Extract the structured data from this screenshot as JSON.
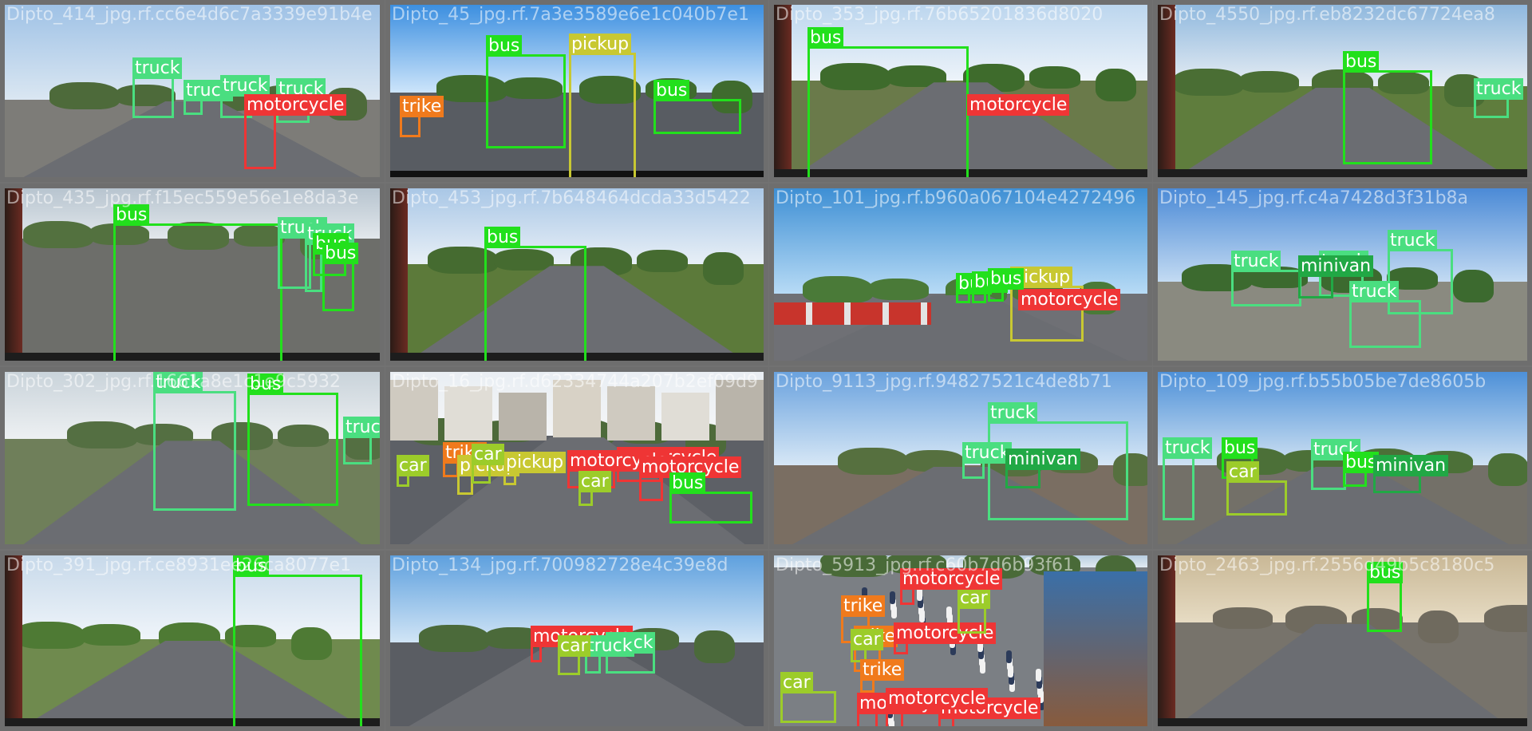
{
  "colors": {
    "truck": "#4ade80",
    "bus": "#22e01c",
    "pickup": "#c8c832",
    "motorcycle": "#ef3535",
    "trike": "#f07a1c",
    "car": "#9ccc2a",
    "minivan": "#21a845"
  },
  "tiles": [
    {
      "name": "Dipto_414_jpg.rf.cc6e4d6c7a3339e91b4e",
      "scene": "highway-towers",
      "detections": [
        {
          "cls": "truck",
          "label": "truck"
        },
        {
          "cls": "truck",
          "label": "truck"
        },
        {
          "cls": "truck",
          "label": "truck"
        },
        {
          "cls": "truck",
          "label": "truck"
        },
        {
          "cls": "motorcycle",
          "label": "motorcycle"
        }
      ]
    },
    {
      "name": "Dipto_45_jpg.rf.7a3e3589e6e1c040b7e1",
      "scene": "bridge-traffic",
      "detections": [
        {
          "cls": "bus",
          "label": "bus"
        },
        {
          "cls": "pickup",
          "label": "pickup"
        },
        {
          "cls": "bus",
          "label": "bus"
        },
        {
          "cls": "trike",
          "label": "trike"
        }
      ]
    },
    {
      "name": "Dipto_353_jpg.rf.76b65201836d8020",
      "scene": "bus-rear-green",
      "detections": [
        {
          "cls": "bus",
          "label": "bus"
        },
        {
          "cls": "motorcycle",
          "label": "motorcycle"
        }
      ]
    },
    {
      "name": "Dipto_4550_jpg.rf.eb8232dc67724ea8",
      "scene": "rural-road",
      "detections": [
        {
          "cls": "bus",
          "label": "bus"
        },
        {
          "cls": "truck",
          "label": "truck"
        }
      ]
    },
    {
      "name": "Dipto_435_jpg.rf.f15ec559e56e1e8da3e",
      "scene": "touring-car",
      "detections": [
        {
          "cls": "bus",
          "label": "bus"
        },
        {
          "cls": "truck",
          "label": "truck"
        },
        {
          "cls": "truck",
          "label": "truck"
        },
        {
          "cls": "bus",
          "label": "bus"
        },
        {
          "cls": "bus",
          "label": "bus"
        }
      ]
    },
    {
      "name": "Dipto_453_jpg.rf.7b648464dcda33d5422",
      "scene": "bus-rear-road",
      "detections": [
        {
          "cls": "bus",
          "label": "bus"
        }
      ]
    },
    {
      "name": "Dipto_101_jpg.rf.b960a067104e4272496",
      "scene": "construction",
      "detections": [
        {
          "cls": "pickup",
          "label": "pickup"
        },
        {
          "cls": "motorcycle",
          "label": "motorcycle"
        },
        {
          "cls": "bus",
          "label": "bus"
        },
        {
          "cls": "bus",
          "label": "bus"
        },
        {
          "cls": "bus",
          "label": "bus"
        }
      ]
    },
    {
      "name": "Dipto_145_jpg.rf.c4a7428d3f31b8a",
      "scene": "tanker-yard",
      "detections": [
        {
          "cls": "truck",
          "label": "truck"
        },
        {
          "cls": "truck",
          "label": "truck"
        },
        {
          "cls": "minivan",
          "label": "minivan"
        },
        {
          "cls": "truck",
          "label": "truck"
        },
        {
          "cls": "truck",
          "label": "truck"
        }
      ]
    },
    {
      "name": "Dipto_302_jpg.rf.1661a8e1c1e9c5932",
      "scene": "yellow-truck-bus",
      "detections": [
        {
          "cls": "truck",
          "label": "truck"
        },
        {
          "cls": "bus",
          "label": "bus"
        },
        {
          "cls": "truck",
          "label": "truck"
        }
      ]
    },
    {
      "name": "Dipto_16_jpg.rf.d62334744a207b2ef09d9",
      "scene": "city-aerial",
      "detections": [
        {
          "cls": "car",
          "label": "car"
        },
        {
          "cls": "trike",
          "label": "trike"
        },
        {
          "cls": "pickup",
          "label": "pickup"
        },
        {
          "cls": "pickup",
          "label": "pickup"
        },
        {
          "cls": "car",
          "label": "car"
        },
        {
          "cls": "motorcycle",
          "label": "motorcycle"
        },
        {
          "cls": "motorcycle",
          "label": "motorcycle"
        },
        {
          "cls": "motorcycle",
          "label": "motorcycle"
        },
        {
          "cls": "bus",
          "label": "bus"
        },
        {
          "cls": "car",
          "label": "car"
        }
      ]
    },
    {
      "name": "Dipto_9113_jpg.rf.94827521c4de8b71",
      "scene": "yellow-truck-sky",
      "detections": [
        {
          "cls": "truck",
          "label": "truck"
        },
        {
          "cls": "truck",
          "label": "truck"
        },
        {
          "cls": "minivan",
          "label": "minivan"
        }
      ]
    },
    {
      "name": "Dipto_109_jpg.rf.b55b05be7de8605b",
      "scene": "industrial-road",
      "detections": [
        {
          "cls": "truck",
          "label": "truck"
        },
        {
          "cls": "bus",
          "label": "bus"
        },
        {
          "cls": "car",
          "label": "car"
        },
        {
          "cls": "truck",
          "label": "truck"
        },
        {
          "cls": "bus",
          "label": "bus"
        },
        {
          "cls": "minivan",
          "label": "minivan"
        }
      ]
    },
    {
      "name": "Dipto_391_jpg.rf.ce8931ee26ca8077e1",
      "scene": "bus-window",
      "detections": [
        {
          "cls": "bus",
          "label": "bus"
        }
      ]
    },
    {
      "name": "Dipto_134_jpg.rf.700982728e4c39e8d",
      "scene": "flat-highway",
      "detections": [
        {
          "cls": "motorcycle",
          "label": "motorcycle"
        },
        {
          "cls": "truck",
          "label": "truck"
        },
        {
          "cls": "truck",
          "label": "truck"
        },
        {
          "cls": "car",
          "label": "car"
        }
      ]
    },
    {
      "name": "Dipto_5913_jpg.rf.c60b7d6b93f61",
      "scene": "crowded-street",
      "detections": [
        {
          "cls": "car",
          "label": "car"
        },
        {
          "cls": "trike",
          "label": "trike"
        },
        {
          "cls": "trike",
          "label": "trike"
        },
        {
          "cls": "motorcycle",
          "label": "motorcycle"
        },
        {
          "cls": "car",
          "label": "car"
        },
        {
          "cls": "motorcycle",
          "label": "motorcycle"
        },
        {
          "cls": "car",
          "label": "car"
        },
        {
          "cls": "motorcycle",
          "label": "motorcycle"
        },
        {
          "cls": "trike",
          "label": "trike"
        },
        {
          "cls": "motorcycle",
          "label": "motorcycle"
        },
        {
          "cls": "motorcycle",
          "label": "motorcycle"
        }
      ]
    },
    {
      "name": "Dipto_2463_jpg.rf.2556d49b5c8180c5",
      "scene": "flyover",
      "detections": [
        {
          "cls": "bus",
          "label": "bus"
        }
      ]
    }
  ]
}
